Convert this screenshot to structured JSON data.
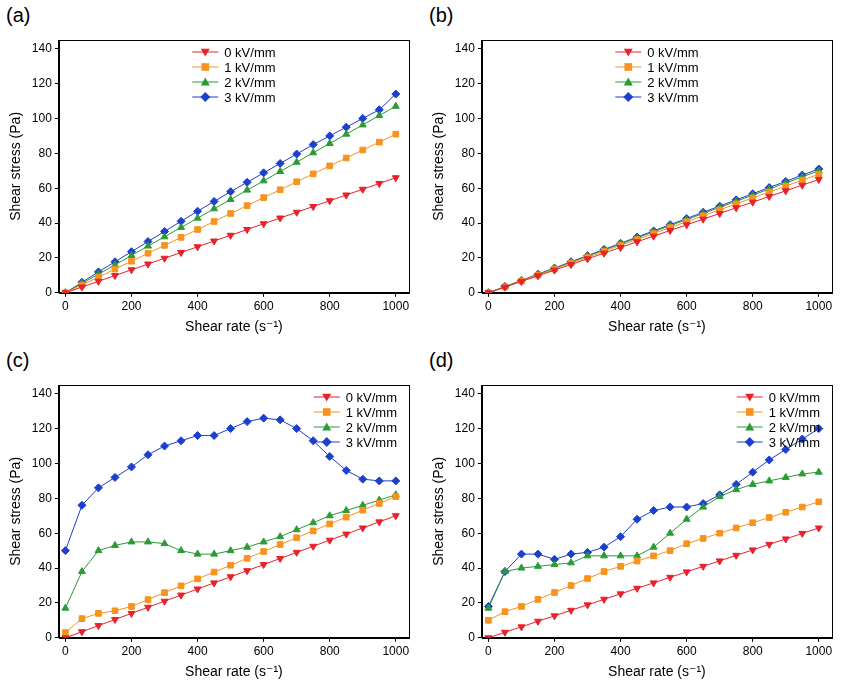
{
  "chart_data": [
    {
      "type": "line",
      "title": "(a)",
      "x_label": "Shear rate (s⁻¹)",
      "y_label": "Shear stress (Pa)",
      "xlim": [
        -20,
        1040
      ],
      "xticks": [
        0,
        200,
        400,
        600,
        800,
        1000
      ],
      "ylim": [
        0,
        145
      ],
      "yticks": [
        0,
        20,
        40,
        60,
        80,
        100,
        120,
        140
      ],
      "grid": false,
      "legend": "top",
      "x": [
        0,
        50,
        100,
        150,
        200,
        250,
        300,
        350,
        400,
        450,
        500,
        550,
        600,
        650,
        700,
        750,
        800,
        850,
        900,
        950,
        1000
      ],
      "series": [
        {
          "name": "0 kV/mm",
          "color": "#e8212b",
          "marker": "triangle-down",
          "values": [
            0,
            3.3,
            6.6,
            9.9,
            13.2,
            16.5,
            19.8,
            23.1,
            26.4,
            29.7,
            33,
            36.3,
            39.6,
            42.9,
            46.2,
            49.5,
            52.8,
            56.1,
            59.4,
            62.7,
            66
          ]
        },
        {
          "name": "1 kV/mm",
          "color": "#f7931e",
          "marker": "square",
          "values": [
            0,
            4.5,
            9,
            13.6,
            18.1,
            22.7,
            27.2,
            31.8,
            36.3,
            40.9,
            45.5,
            50,
            54.6,
            59.1,
            63.7,
            68.2,
            72.8,
            77.3,
            81.9,
            86.4,
            91
          ]
        },
        {
          "name": "2 kV/mm",
          "color": "#2b9b35",
          "marker": "triangle",
          "values": [
            0,
            5.4,
            10.7,
            16,
            21.4,
            26.8,
            32.1,
            37.5,
            42.8,
            48.2,
            53.5,
            58.9,
            64.2,
            69.6,
            74.9,
            80.3,
            85.6,
            91,
            96.3,
            101.7,
            107
          ]
        },
        {
          "name": "3 kV/mm",
          "color": "#1c3fcf",
          "marker": "diamond",
          "values": [
            0,
            6,
            12,
            17.8,
            23.6,
            29.4,
            35.2,
            41,
            46.8,
            52.4,
            58,
            63.4,
            68.8,
            74.2,
            79.6,
            85,
            90,
            95,
            100,
            105,
            114
          ]
        }
      ]
    },
    {
      "type": "line",
      "title": "(b)",
      "x_label": "Shear rate (s⁻¹)",
      "y_label": "Shear stress (Pa)",
      "xlim": [
        -20,
        1040
      ],
      "xticks": [
        0,
        200,
        400,
        600,
        800,
        1000
      ],
      "ylim": [
        0,
        145
      ],
      "yticks": [
        0,
        20,
        40,
        60,
        80,
        100,
        120,
        140
      ],
      "grid": false,
      "legend": "top",
      "x": [
        0,
        50,
        100,
        150,
        200,
        250,
        300,
        350,
        400,
        450,
        500,
        550,
        600,
        650,
        700,
        750,
        800,
        850,
        900,
        950,
        1000
      ],
      "series": [
        {
          "name": "0 kV/mm",
          "color": "#e8212b",
          "marker": "triangle-down",
          "values": [
            0,
            3.25,
            6.5,
            9.75,
            13,
            16.25,
            19.5,
            22.75,
            26,
            29.25,
            32.5,
            35.75,
            39,
            42.25,
            45.5,
            48.75,
            52,
            55.25,
            58.5,
            61.75,
            65
          ]
        },
        {
          "name": "1 kV/mm",
          "color": "#f7931e",
          "marker": "square",
          "values": [
            0,
            3.4,
            6.8,
            10.2,
            13.6,
            17,
            20.4,
            23.8,
            27.2,
            30.6,
            34,
            37.4,
            40.8,
            44.2,
            47.6,
            51,
            54.4,
            57.8,
            61.2,
            64.6,
            68
          ]
        },
        {
          "name": "2 kV/mm",
          "color": "#2b9b35",
          "marker": "triangle",
          "values": [
            0,
            3.5,
            7,
            10.5,
            14,
            17.5,
            21,
            24.5,
            28,
            31.5,
            35,
            38.5,
            42,
            45.5,
            49,
            52.5,
            56,
            59.5,
            63,
            66.5,
            70
          ]
        },
        {
          "name": "3 kV/mm",
          "color": "#1c3fcf",
          "marker": "diamond",
          "values": [
            0,
            3.6,
            7.1,
            10.7,
            14.2,
            17.8,
            21.3,
            24.9,
            28.4,
            32,
            35.5,
            39.1,
            42.6,
            46.2,
            49.7,
            53.3,
            56.8,
            60.4,
            63.9,
            67.5,
            71
          ]
        }
      ]
    },
    {
      "type": "line",
      "title": "(c)",
      "x_label": "Shear rate (s⁻¹)",
      "y_label": "Shear stress (Pa)",
      "xlim": [
        -20,
        1040
      ],
      "xticks": [
        0,
        200,
        400,
        600,
        800,
        1000
      ],
      "ylim": [
        0,
        145
      ],
      "yticks": [
        0,
        20,
        40,
        60,
        80,
        100,
        120,
        140
      ],
      "grid": false,
      "legend": "top-right",
      "x": [
        0,
        50,
        100,
        150,
        200,
        250,
        300,
        350,
        400,
        450,
        500,
        550,
        600,
        650,
        700,
        750,
        800,
        850,
        900,
        950,
        1000
      ],
      "series": [
        {
          "name": "0 kV/mm",
          "color": "#e8212b",
          "marker": "triangle-down",
          "values": [
            0,
            3.5,
            7,
            10.5,
            14,
            17.5,
            21,
            24.5,
            28,
            31.5,
            35,
            38.5,
            42,
            45.5,
            49,
            52.5,
            56,
            59.5,
            63,
            66.5,
            70
          ]
        },
        {
          "name": "1 kV/mm",
          "color": "#f7931e",
          "marker": "square",
          "values": [
            3,
            11,
            14,
            15.5,
            18,
            21.9,
            25.9,
            29.8,
            33.8,
            37.7,
            41.6,
            45.6,
            49.5,
            53.5,
            57.4,
            61.3,
            65.3,
            69.2,
            73.2,
            77.1,
            81
          ]
        },
        {
          "name": "2 kV/mm",
          "color": "#2b9b35",
          "marker": "triangle",
          "values": [
            17,
            38,
            50,
            53,
            55,
            55,
            54,
            50,
            48,
            48,
            50,
            52,
            55,
            58,
            62,
            66,
            70,
            73,
            76,
            79,
            82
          ]
        },
        {
          "name": "3 kV/mm",
          "color": "#1c3fcf",
          "marker": "diamond",
          "values": [
            50,
            76,
            86,
            92,
            98,
            105,
            110,
            113,
            116,
            116,
            120,
            124,
            126,
            125,
            120,
            113,
            104,
            96,
            91,
            90,
            90
          ]
        }
      ]
    },
    {
      "type": "line",
      "title": "(d)",
      "x_label": "Shear rate (s⁻¹)",
      "y_label": "Shear stress (Pa)",
      "xlim": [
        -20,
        1040
      ],
      "xticks": [
        0,
        200,
        400,
        600,
        800,
        1000
      ],
      "ylim": [
        0,
        145
      ],
      "yticks": [
        0,
        20,
        40,
        60,
        80,
        100,
        120,
        140
      ],
      "grid": false,
      "legend": "top-right",
      "x": [
        0,
        50,
        100,
        150,
        200,
        250,
        300,
        350,
        400,
        450,
        500,
        550,
        600,
        650,
        700,
        750,
        800,
        850,
        900,
        950,
        1000
      ],
      "series": [
        {
          "name": "0 kV/mm",
          "color": "#e8212b",
          "marker": "triangle-down",
          "values": [
            0,
            3.2,
            6.3,
            9.5,
            12.6,
            15.8,
            18.9,
            22.1,
            25.2,
            28.4,
            31.5,
            34.7,
            37.8,
            41,
            44.1,
            47.3,
            50.4,
            53.6,
            56.7,
            59.9,
            63
          ]
        },
        {
          "name": "1 kV/mm",
          "color": "#f7931e",
          "marker": "square",
          "values": [
            10,
            15,
            18,
            22,
            26,
            30,
            34,
            38,
            41,
            44,
            47,
            50,
            54,
            57,
            60,
            63,
            66,
            69,
            72,
            75,
            78
          ]
        },
        {
          "name": "2 kV/mm",
          "color": "#2b9b35",
          "marker": "triangle",
          "values": [
            17,
            38,
            40,
            41,
            42,
            43,
            47,
            47,
            47,
            47,
            52,
            60,
            68,
            75,
            81,
            85,
            88,
            90,
            92,
            94,
            95
          ]
        },
        {
          "name": "3 kV/mm",
          "color": "#1c3fcf",
          "marker": "diamond",
          "values": [
            18,
            38,
            48,
            48,
            45,
            48,
            49,
            52,
            58,
            68,
            73,
            75,
            75,
            77,
            82,
            88,
            95,
            102,
            108,
            114,
            120
          ]
        }
      ]
    }
  ]
}
